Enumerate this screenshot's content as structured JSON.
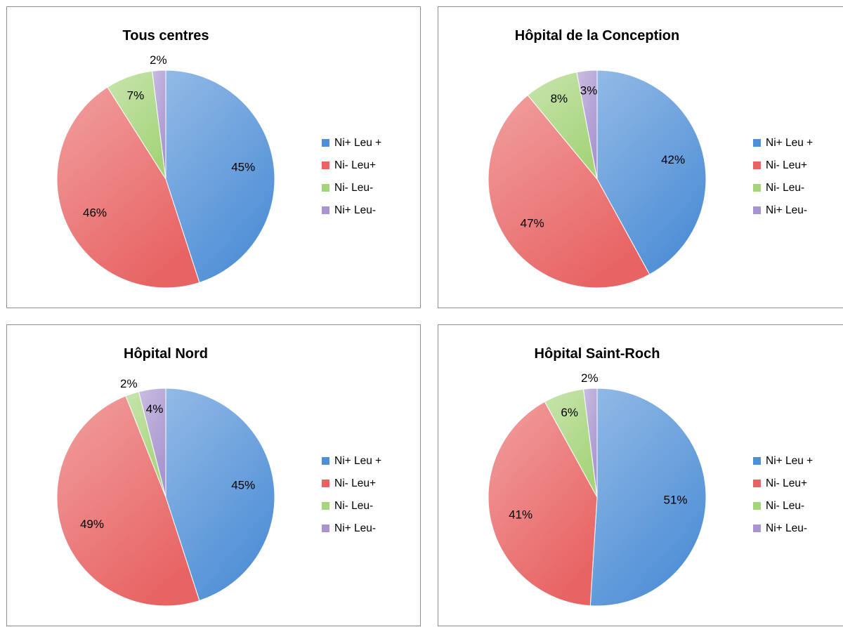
{
  "chart_data": [
    {
      "type": "pie",
      "title": "Tous centres",
      "categories": [
        "Ni+ Leu +",
        "Ni- Leu+",
        "Ni- Leu-",
        "Ni+ Leu-"
      ],
      "values": [
        45,
        46,
        7,
        2
      ],
      "labels": [
        "45%",
        "46%",
        "7%",
        "2%"
      ],
      "legend_position": "right"
    },
    {
      "type": "pie",
      "title": "Hôpital de la Conception",
      "categories": [
        "Ni+ Leu +",
        "Ni- Leu+",
        "Ni- Leu-",
        "Ni+ Leu-"
      ],
      "values": [
        42,
        47,
        8,
        3
      ],
      "labels": [
        "42%",
        "47%",
        "8%",
        "3%"
      ],
      "legend_position": "right"
    },
    {
      "type": "pie",
      "title": "Hôpital Nord",
      "categories": [
        "Ni+ Leu +",
        "Ni- Leu+",
        "Ni- Leu-",
        "Ni+ Leu-"
      ],
      "values": [
        45,
        49,
        2,
        4
      ],
      "labels": [
        "45%",
        "49%",
        "2%",
        "4%"
      ],
      "legend_position": "right"
    },
    {
      "type": "pie",
      "title": "Hôpital Saint-Roch",
      "categories": [
        "Ni+ Leu +",
        "Ni- Leu+",
        "Ni- Leu-",
        "Ni+ Leu-"
      ],
      "values": [
        51,
        41,
        6,
        2
      ],
      "labels": [
        "51%",
        "41%",
        "6%",
        "2%"
      ],
      "legend_position": "right"
    }
  ],
  "colors": {
    "series": [
      "#4f8fd6",
      "#e86464",
      "#a5d47a",
      "#a894cf"
    ]
  }
}
